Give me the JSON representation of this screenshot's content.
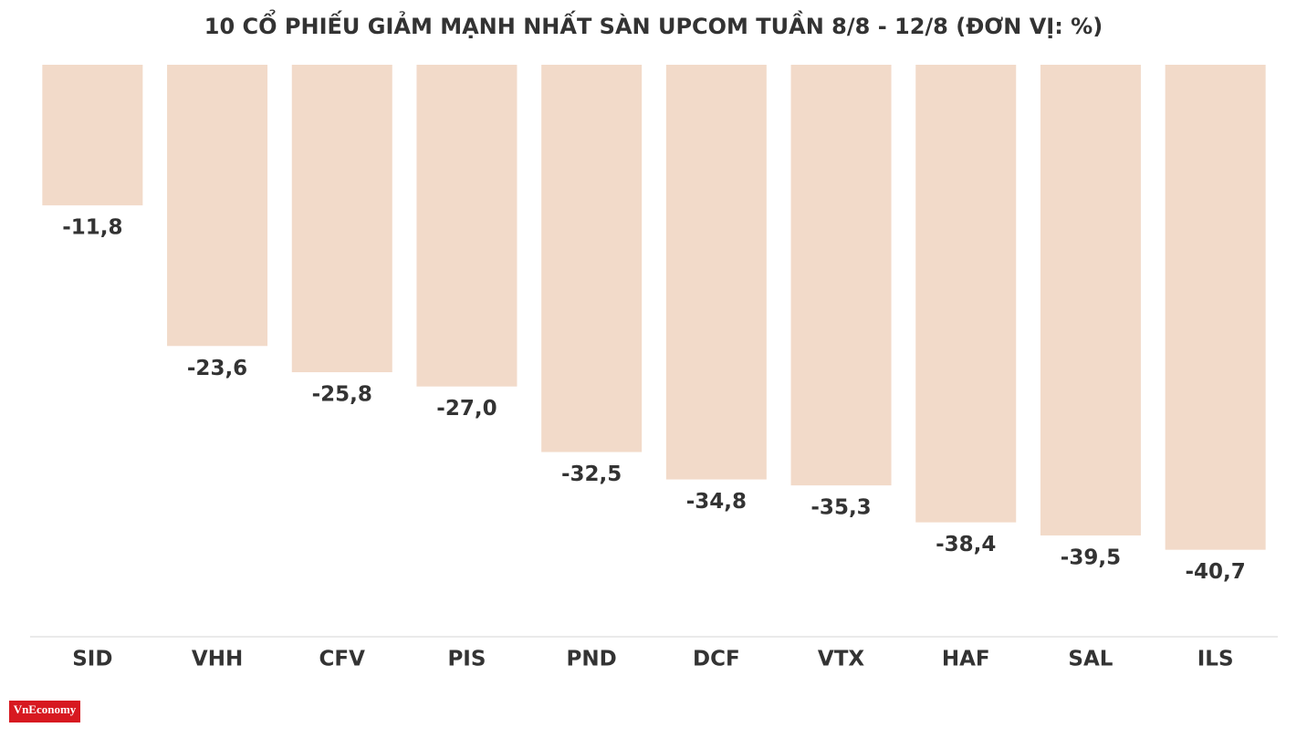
{
  "chart_data": {
    "type": "bar",
    "title": "10 CỔ PHIẾU GIẢM MẠNH NHẤT SÀN UPCOM TUẦN 8/8 - 12/8 (ĐƠN VỊ: %)",
    "categories": [
      "SID",
      "VHH",
      "CFV",
      "PIS",
      "PND",
      "DCF",
      "VTX",
      "HAF",
      "SAL",
      "ILS"
    ],
    "values": [
      -11.8,
      -23.6,
      -25.8,
      -27.0,
      -32.5,
      -34.8,
      -35.3,
      -38.4,
      -39.5,
      -40.7
    ],
    "value_labels": [
      "-11,8",
      "-23,6",
      "-25,8",
      "-27,0",
      "-32,5",
      "-34,8",
      "-35,3",
      "-38,4",
      "-39,5",
      "-40,7"
    ],
    "color": "#f2dac9",
    "ylim": [
      -48,
      0
    ],
    "logo": "VnEconomy"
  }
}
